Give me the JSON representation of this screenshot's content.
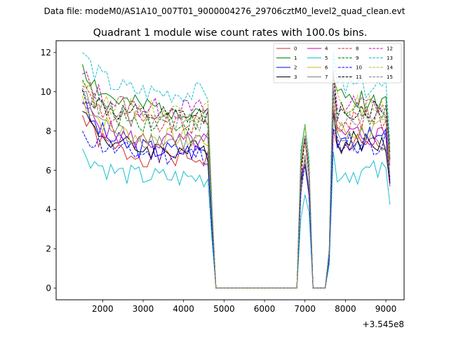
{
  "chart_data": {
    "type": "line",
    "suptitle": "Data file: modeM0/AS1A10_007T01_9000004276_29706cztM0_level2_quad_clean.evt",
    "title": "Quadrant 1 module wise count rates with 100.0s bins.",
    "xlabel": "",
    "ylabel": "",
    "offset_text": "+3.545e8",
    "xlim": [
      850,
      9450
    ],
    "ylim": [
      -0.6,
      12.6
    ],
    "xticks": [
      2000,
      3000,
      4000,
      5000,
      6000,
      7000,
      8000,
      9000
    ],
    "yticks": [
      0,
      2,
      4,
      6,
      8,
      10,
      12
    ],
    "x": [
      1500,
      1600,
      1700,
      1800,
      1900,
      2000,
      2100,
      2200,
      2300,
      2400,
      2500,
      2600,
      2700,
      2800,
      2900,
      3000,
      3100,
      3200,
      3300,
      3400,
      3500,
      3600,
      3700,
      3800,
      3900,
      4000,
      4100,
      4200,
      4300,
      4400,
      4500,
      4600,
      4700,
      4800,
      4900,
      5000,
      5100,
      5200,
      5300,
      5400,
      5500,
      5600,
      5700,
      5800,
      5900,
      6000,
      6100,
      6200,
      6300,
      6400,
      6500,
      6600,
      6700,
      6800,
      6900,
      7000,
      7100,
      7200,
      7300,
      7400,
      7500,
      7600,
      7700,
      7800,
      7900,
      8000,
      8100,
      8200,
      8300,
      8400,
      8500,
      8600,
      8700,
      8800,
      8900,
      9000,
      9100
    ],
    "series_bases": [
      {
        "name": "0",
        "color": "#d62728",
        "dash": "solid",
        "start": 8.8,
        "level": 6.6,
        "post": 7.2,
        "seed": 1
      },
      {
        "name": "1",
        "color": "#008000",
        "dash": "solid",
        "start": 11.4,
        "level": 9.1,
        "post": 9.6,
        "seed": 2
      },
      {
        "name": "2",
        "color": "#0000ff",
        "dash": "solid",
        "start": 9.4,
        "level": 7.0,
        "post": 7.6,
        "seed": 3
      },
      {
        "name": "3",
        "color": "#000000",
        "dash": "solid",
        "start": 9.0,
        "level": 7.0,
        "post": 7.4,
        "seed": 4
      },
      {
        "name": "4",
        "color": "#bf00bf",
        "dash": "solid",
        "start": 9.5,
        "level": 7.4,
        "post": 7.8,
        "seed": 5
      },
      {
        "name": "5",
        "color": "#17becf",
        "dash": "solid",
        "start": 7.1,
        "level": 5.6,
        "post": 5.9,
        "seed": 6
      },
      {
        "name": "6",
        "color": "#bcbd22",
        "dash": "solid",
        "start": 9.8,
        "level": 7.6,
        "post": 8.0,
        "seed": 7
      },
      {
        "name": "7",
        "color": "#7f7f7f",
        "dash": "solid",
        "start": 10.0,
        "level": 7.5,
        "post": 7.6,
        "seed": 8
      },
      {
        "name": "8",
        "color": "#d62728",
        "dash": "dashed",
        "start": 10.3,
        "level": 8.3,
        "post": 8.6,
        "seed": 9
      },
      {
        "name": "9",
        "color": "#008000",
        "dash": "dashed",
        "start": 10.6,
        "level": 8.4,
        "post": 9.0,
        "seed": 10
      },
      {
        "name": "10",
        "color": "#0000ff",
        "dash": "dashed",
        "start": 8.0,
        "level": 6.8,
        "post": 7.4,
        "seed": 11
      },
      {
        "name": "11",
        "color": "#000000",
        "dash": "dashed",
        "start": 10.1,
        "level": 8.7,
        "post": 9.1,
        "seed": 12
      },
      {
        "name": "12",
        "color": "#bf00bf",
        "dash": "dashed",
        "start": 10.9,
        "level": 9.1,
        "post": 9.3,
        "seed": 13
      },
      {
        "name": "13",
        "color": "#17becf",
        "dash": "dashed",
        "start": 12.0,
        "level": 9.9,
        "post": 10.2,
        "seed": 14
      },
      {
        "name": "14",
        "color": "#bcbd22",
        "dash": "dashed",
        "start": 10.5,
        "level": 9.0,
        "post": 9.3,
        "seed": 15
      },
      {
        "name": "15",
        "color": "#7f7f7f",
        "dash": "dashed",
        "start": 10.2,
        "level": 8.5,
        "post": 8.8,
        "seed": 16
      }
    ]
  }
}
